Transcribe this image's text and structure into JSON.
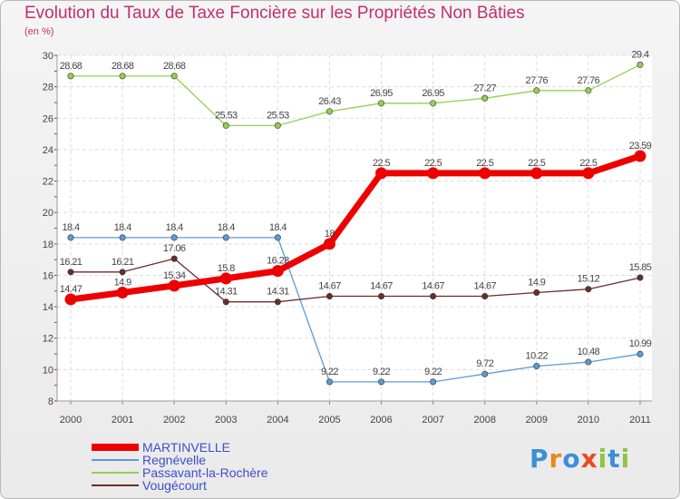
{
  "title": "Evolution du Taux de Taxe Foncière sur les Propriétés Non Bâties",
  "unit_label": "(en %)",
  "logo": {
    "letters": [
      "P",
      "r",
      "o",
      "x",
      "i",
      "t",
      "i"
    ],
    "colors": [
      "#3a8fd8",
      "#e8881e",
      "#3a8fd8",
      "#e84c1e",
      "#8cc63f",
      "#3a8fd8",
      "#8cc63f"
    ]
  },
  "colors": {
    "MARTINVELLE": "#ee0000",
    "Regnévelle": "#5b9bd5",
    "Passavant-la-Rochère": "#92d050",
    "Vougécourt": "#6b2c2c"
  },
  "chart_data": {
    "type": "line",
    "title": "Evolution du Taux de Taxe Foncière sur les Propriétés Non Bâties",
    "ylabel": "(en %)",
    "xlabel": "",
    "categories": [
      "2000",
      "2001",
      "2002",
      "2003",
      "2004",
      "2005",
      "2006",
      "2007",
      "2008",
      "2009",
      "2010",
      "2011"
    ],
    "ylim": [
      8,
      30
    ],
    "yticks": [
      8,
      10,
      12,
      14,
      16,
      18,
      20,
      22,
      24,
      26,
      28,
      30
    ],
    "grid": true,
    "series": [
      {
        "name": "MARTINVELLE",
        "values": [
          14.47,
          14.9,
          15.34,
          15.8,
          16.28,
          18,
          22.5,
          22.5,
          22.5,
          22.5,
          22.5,
          23.59
        ],
        "labels": [
          "14.47",
          "14.9",
          "15.34",
          "15.8",
          "16.28",
          "18",
          "22.5",
          "22.5",
          "22.5",
          "22.5",
          "22.5",
          "23.59"
        ]
      },
      {
        "name": "Regnévelle",
        "values": [
          18.4,
          18.4,
          18.4,
          18.4,
          18.4,
          9.22,
          9.22,
          9.22,
          9.72,
          10.22,
          10.48,
          10.99
        ],
        "labels": [
          "18.4",
          "18.4",
          "18.4",
          "18.4",
          "18.4",
          "9.22",
          "9.22",
          "9.22",
          "9.72",
          "10.22",
          "10.48",
          "10.99"
        ]
      },
      {
        "name": "Passavant-la-Rochère",
        "values": [
          28.68,
          28.68,
          28.68,
          25.53,
          25.53,
          26.43,
          26.95,
          26.95,
          27.27,
          27.76,
          27.76,
          29.4
        ],
        "labels": [
          "28.68",
          "28.68",
          "28.68",
          "25.53",
          "25.53",
          "26.43",
          "26.95",
          "26.95",
          "27.27",
          "27.76",
          "27.76",
          "29.4"
        ]
      },
      {
        "name": "Vougécourt",
        "values": [
          16.21,
          16.21,
          17.06,
          14.31,
          14.31,
          14.67,
          14.67,
          14.67,
          14.67,
          14.9,
          15.12,
          15.85
        ],
        "labels": [
          "16.21",
          "16.21",
          "17.06",
          "14.31",
          "14.31",
          "14.67",
          "14.67",
          "14.67",
          "14.67",
          "14.9",
          "15.12",
          "15.85"
        ]
      }
    ],
    "legend": [
      "MARTINVELLE",
      "Regnévelle",
      "Passavant-la-Rochère",
      "Vougécourt"
    ],
    "legend_position": "bottom-left"
  }
}
